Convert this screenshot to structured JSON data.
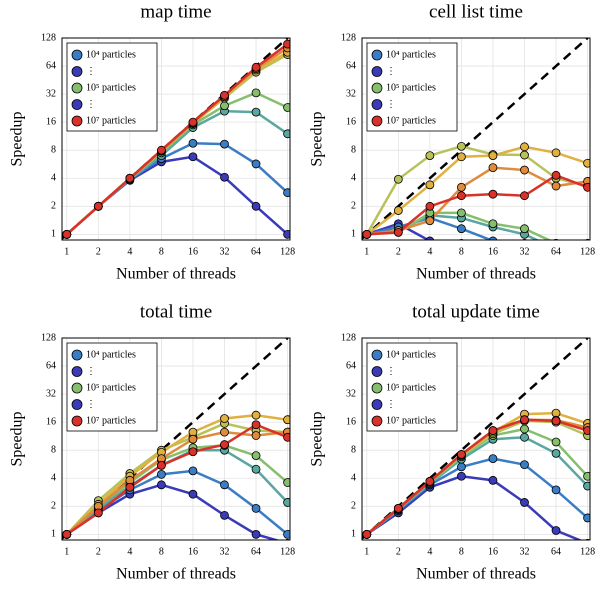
{
  "legend": [
    {
      "label": "10⁴ particles",
      "color": "#3b7dc4"
    },
    {
      "label": "⋮",
      "color": "#3b3bb8"
    },
    {
      "label": "10⁵ particles",
      "color": "#85bf6e"
    },
    {
      "label": "⋮",
      "color": "#3b3bb8"
    },
    {
      "label": "10⁷ particles",
      "color": "#d8322a"
    }
  ],
  "chart_data": [
    {
      "type": "line",
      "title": "map time",
      "x_label": "Number of threads",
      "y_label": "Speedup",
      "log_scale": true,
      "grid": true,
      "x": [
        1,
        2,
        4,
        8,
        16,
        32,
        64,
        128
      ],
      "xlim": [
        0.9,
        135
      ],
      "ylim": [
        0.87,
        128
      ],
      "xticks": [
        1,
        2,
        4,
        8,
        16,
        32,
        64,
        128
      ],
      "yticks": [
        1,
        2,
        4,
        8,
        16,
        32,
        64,
        128
      ],
      "series": [
        {
          "color": "#3b3bb8",
          "values": [
            1,
            2,
            3.8,
            6,
            6.8,
            4.1,
            2,
            1
          ]
        },
        {
          "color": "#3b7dc4",
          "values": [
            1,
            2,
            3.9,
            6.5,
            9.5,
            9.3,
            5.7,
            2.8
          ]
        },
        {
          "color": "#5aa6a0",
          "values": [
            1,
            2,
            3.9,
            7,
            14,
            21,
            20.5,
            12
          ]
        },
        {
          "color": "#85bf6e",
          "values": [
            1,
            2,
            4,
            7.5,
            15,
            24,
            33,
            23
          ]
        },
        {
          "color": "#b8c25a",
          "values": [
            1,
            2,
            4,
            7.8,
            15.5,
            29,
            55,
            85
          ]
        },
        {
          "color": "#e0b040",
          "values": [
            1,
            2,
            4,
            7.8,
            15.5,
            30,
            58,
            90
          ]
        },
        {
          "color": "#e08a3c",
          "values": [
            1,
            2,
            4,
            7.9,
            15.7,
            31,
            60,
            100
          ]
        },
        {
          "color": "#d8322a",
          "values": [
            1,
            2,
            4,
            8,
            16,
            31,
            62,
            110
          ]
        }
      ]
    },
    {
      "type": "line",
      "title": "cell list time",
      "x_label": "Number of threads",
      "y_label": "Speedup",
      "log_scale": true,
      "grid": true,
      "x": [
        1,
        2,
        4,
        8,
        16,
        32,
        64,
        128
      ],
      "xlim": [
        0.9,
        135
      ],
      "ylim": [
        0.87,
        128
      ],
      "xticks": [
        1,
        2,
        4,
        8,
        16,
        32,
        64,
        128
      ],
      "yticks": [
        1,
        2,
        4,
        8,
        16,
        32,
        64,
        128
      ],
      "series": [
        {
          "color": "#3b3bb8",
          "values": [
            1,
            1.3,
            0.85,
            0.8,
            0.8,
            0.8,
            0.8,
            0.8
          ]
        },
        {
          "color": "#3b7dc4",
          "values": [
            1,
            1.2,
            1.5,
            1.15,
            0.85,
            0.75,
            0.6,
            0.6
          ]
        },
        {
          "color": "#5aa6a0",
          "values": [
            1,
            1.1,
            1.6,
            1.5,
            1.2,
            1,
            0.7,
            0.6
          ]
        },
        {
          "color": "#85bf6e",
          "values": [
            1,
            1.05,
            1.7,
            1.7,
            1.3,
            1.15,
            0.8,
            0.7
          ]
        },
        {
          "color": "#b8c25a",
          "values": [
            1,
            3.9,
            7,
            8.8,
            7.2,
            7.1,
            4,
            3.3
          ]
        },
        {
          "color": "#e0b040",
          "values": [
            1,
            1.8,
            3.4,
            6.8,
            7,
            8.7,
            7.5,
            5.8
          ]
        },
        {
          "color": "#e08a3c",
          "values": [
            1,
            1.1,
            1.4,
            3.2,
            5.2,
            4.9,
            3.3,
            3.7
          ]
        },
        {
          "color": "#d8322a",
          "values": [
            1,
            1.05,
            2,
            2.6,
            2.7,
            2.6,
            4.3,
            3.2
          ]
        }
      ]
    },
    {
      "type": "line",
      "title": "total time",
      "x_label": "Number of threads",
      "y_label": "Speedup",
      "log_scale": true,
      "grid": true,
      "x": [
        1,
        2,
        4,
        8,
        16,
        32,
        64,
        128
      ],
      "xlim": [
        0.9,
        135
      ],
      "ylim": [
        0.87,
        128
      ],
      "xticks": [
        1,
        2,
        4,
        8,
        16,
        32,
        64,
        128
      ],
      "yticks": [
        1,
        2,
        4,
        8,
        16,
        32,
        64,
        128
      ],
      "series": [
        {
          "color": "#3b3bb8",
          "values": [
            1,
            1.7,
            2.7,
            3.4,
            2.7,
            1.6,
            1,
            0.8
          ]
        },
        {
          "color": "#3b7dc4",
          "values": [
            1,
            1.8,
            3,
            4.4,
            4.8,
            3.4,
            1.9,
            1
          ]
        },
        {
          "color": "#5aa6a0",
          "values": [
            1,
            1.9,
            3.3,
            5.5,
            8,
            8,
            5,
            2.2
          ]
        },
        {
          "color": "#85bf6e",
          "values": [
            1,
            2,
            3.6,
            6.3,
            8.5,
            9,
            7,
            3.6
          ]
        },
        {
          "color": "#b8c25a",
          "values": [
            1,
            2.3,
            4.5,
            8,
            11,
            15.5,
            13,
            12.5
          ]
        },
        {
          "color": "#e0b040",
          "values": [
            1,
            2.1,
            4.2,
            7.6,
            12.5,
            17.5,
            19,
            17
          ]
        },
        {
          "color": "#e08a3c",
          "values": [
            1,
            2,
            3.8,
            6.5,
            10.5,
            12.5,
            11.5,
            12.5
          ]
        },
        {
          "color": "#d8322a",
          "values": [
            1,
            1.7,
            3.2,
            5.5,
            7.7,
            9.2,
            15,
            11
          ]
        }
      ]
    },
    {
      "type": "line",
      "title": "total update time",
      "x_label": "Number of threads",
      "y_label": "Speedup",
      "log_scale": true,
      "grid": true,
      "x": [
        1,
        2,
        4,
        8,
        16,
        32,
        64,
        128
      ],
      "xlim": [
        0.9,
        135
      ],
      "ylim": [
        0.87,
        128
      ],
      "xticks": [
        1,
        2,
        4,
        8,
        16,
        32,
        64,
        128
      ],
      "yticks": [
        1,
        2,
        4,
        8,
        16,
        32,
        64,
        128
      ],
      "series": [
        {
          "color": "#3b3bb8",
          "values": [
            1,
            1.7,
            3.2,
            4.2,
            3.8,
            2.2,
            1.1,
            0.8
          ]
        },
        {
          "color": "#3b7dc4",
          "values": [
            1,
            1.8,
            3.4,
            5.3,
            6.5,
            5.6,
            3,
            1.5
          ]
        },
        {
          "color": "#5aa6a0",
          "values": [
            1,
            1.85,
            3.5,
            6.4,
            10.5,
            11,
            7.4,
            3.3
          ]
        },
        {
          "color": "#85bf6e",
          "values": [
            1,
            1.9,
            3.6,
            6.8,
            11.5,
            13.5,
            9.8,
            4.2
          ]
        },
        {
          "color": "#b8c25a",
          "values": [
            1,
            1.9,
            3.7,
            7,
            12,
            16.5,
            16,
            11.5
          ]
        },
        {
          "color": "#e0b040",
          "values": [
            1,
            1.9,
            3.7,
            7.2,
            12.5,
            19.5,
            20,
            15.5
          ]
        },
        {
          "color": "#e08a3c",
          "values": [
            1,
            1.9,
            3.7,
            7.2,
            13,
            17,
            16.8,
            14
          ]
        },
        {
          "color": "#d8322a",
          "values": [
            1,
            1.9,
            3.7,
            7.2,
            13,
            17,
            16.5,
            13
          ]
        }
      ]
    }
  ]
}
